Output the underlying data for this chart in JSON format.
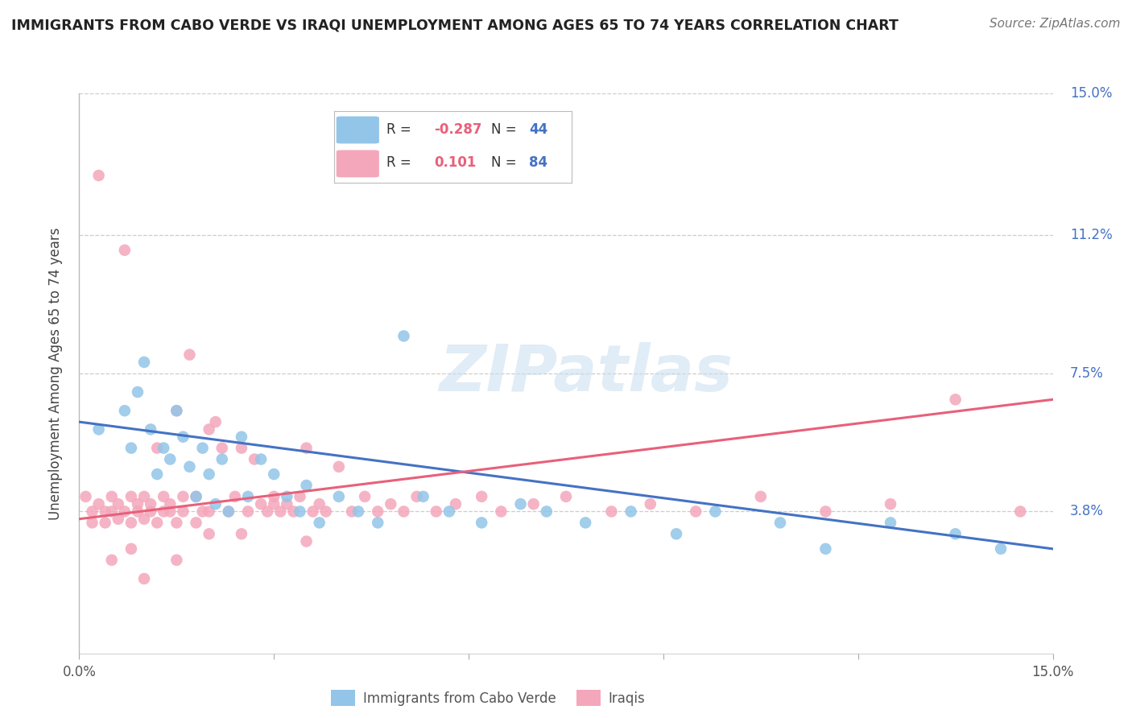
{
  "title": "IMMIGRANTS FROM CABO VERDE VS IRAQI UNEMPLOYMENT AMONG AGES 65 TO 74 YEARS CORRELATION CHART",
  "source": "Source: ZipAtlas.com",
  "ylabel": "Unemployment Among Ages 65 to 74 years",
  "xlim": [
    0.0,
    0.15
  ],
  "ylim": [
    0.0,
    0.15
  ],
  "ytick_positions": [
    0.038,
    0.075,
    0.112,
    0.15
  ],
  "ytick_labels": [
    "3.8%",
    "7.5%",
    "11.2%",
    "15.0%"
  ],
  "xtick_positions": [
    0.0,
    0.03,
    0.06,
    0.09,
    0.12,
    0.15
  ],
  "xtick_labels": [
    "0.0%",
    "",
    "",
    "",
    "",
    "15.0%"
  ],
  "legend_blue_r": "-0.287",
  "legend_blue_n": "44",
  "legend_pink_r": "0.101",
  "legend_pink_n": "84",
  "blue_color": "#92C5E8",
  "pink_color": "#F4A7BB",
  "blue_line_color": "#4472C4",
  "pink_line_color": "#E8607A",
  "blue_line_y0": 0.062,
  "blue_line_y1": 0.028,
  "pink_line_y0": 0.036,
  "pink_line_y1": 0.068,
  "blue_x": [
    0.003,
    0.007,
    0.008,
    0.009,
    0.01,
    0.011,
    0.012,
    0.013,
    0.014,
    0.015,
    0.016,
    0.017,
    0.018,
    0.019,
    0.02,
    0.021,
    0.022,
    0.023,
    0.025,
    0.026,
    0.028,
    0.03,
    0.032,
    0.034,
    0.035,
    0.037,
    0.04,
    0.043,
    0.046,
    0.05,
    0.053,
    0.057,
    0.062,
    0.068,
    0.072,
    0.078,
    0.085,
    0.092,
    0.098,
    0.108,
    0.115,
    0.125,
    0.135,
    0.142
  ],
  "blue_y": [
    0.06,
    0.065,
    0.055,
    0.07,
    0.078,
    0.06,
    0.048,
    0.055,
    0.052,
    0.065,
    0.058,
    0.05,
    0.042,
    0.055,
    0.048,
    0.04,
    0.052,
    0.038,
    0.058,
    0.042,
    0.052,
    0.048,
    0.042,
    0.038,
    0.045,
    0.035,
    0.042,
    0.038,
    0.035,
    0.085,
    0.042,
    0.038,
    0.035,
    0.04,
    0.038,
    0.035,
    0.038,
    0.032,
    0.038,
    0.035,
    0.028,
    0.035,
    0.032,
    0.028
  ],
  "pink_x": [
    0.001,
    0.002,
    0.002,
    0.003,
    0.003,
    0.004,
    0.004,
    0.005,
    0.005,
    0.006,
    0.006,
    0.007,
    0.007,
    0.008,
    0.008,
    0.009,
    0.009,
    0.01,
    0.01,
    0.011,
    0.011,
    0.012,
    0.012,
    0.013,
    0.013,
    0.014,
    0.014,
    0.015,
    0.015,
    0.016,
    0.016,
    0.017,
    0.018,
    0.018,
    0.019,
    0.02,
    0.02,
    0.021,
    0.022,
    0.023,
    0.024,
    0.025,
    0.026,
    0.027,
    0.028,
    0.029,
    0.03,
    0.031,
    0.032,
    0.033,
    0.034,
    0.035,
    0.036,
    0.037,
    0.038,
    0.04,
    0.042,
    0.044,
    0.046,
    0.048,
    0.05,
    0.052,
    0.055,
    0.058,
    0.062,
    0.065,
    0.07,
    0.075,
    0.082,
    0.088,
    0.095,
    0.105,
    0.115,
    0.125,
    0.135,
    0.145,
    0.03,
    0.025,
    0.015,
    0.01,
    0.005,
    0.008,
    0.02,
    0.035
  ],
  "pink_y": [
    0.042,
    0.038,
    0.035,
    0.128,
    0.04,
    0.038,
    0.035,
    0.042,
    0.038,
    0.04,
    0.036,
    0.108,
    0.038,
    0.042,
    0.035,
    0.04,
    0.038,
    0.042,
    0.036,
    0.04,
    0.038,
    0.055,
    0.035,
    0.042,
    0.038,
    0.04,
    0.038,
    0.065,
    0.035,
    0.042,
    0.038,
    0.08,
    0.042,
    0.035,
    0.038,
    0.06,
    0.038,
    0.062,
    0.055,
    0.038,
    0.042,
    0.055,
    0.038,
    0.052,
    0.04,
    0.038,
    0.042,
    0.038,
    0.04,
    0.038,
    0.042,
    0.055,
    0.038,
    0.04,
    0.038,
    0.05,
    0.038,
    0.042,
    0.038,
    0.04,
    0.038,
    0.042,
    0.038,
    0.04,
    0.042,
    0.038,
    0.04,
    0.042,
    0.038,
    0.04,
    0.038,
    0.042,
    0.038,
    0.04,
    0.068,
    0.038,
    0.04,
    0.032,
    0.025,
    0.02,
    0.025,
    0.028,
    0.032,
    0.03
  ]
}
